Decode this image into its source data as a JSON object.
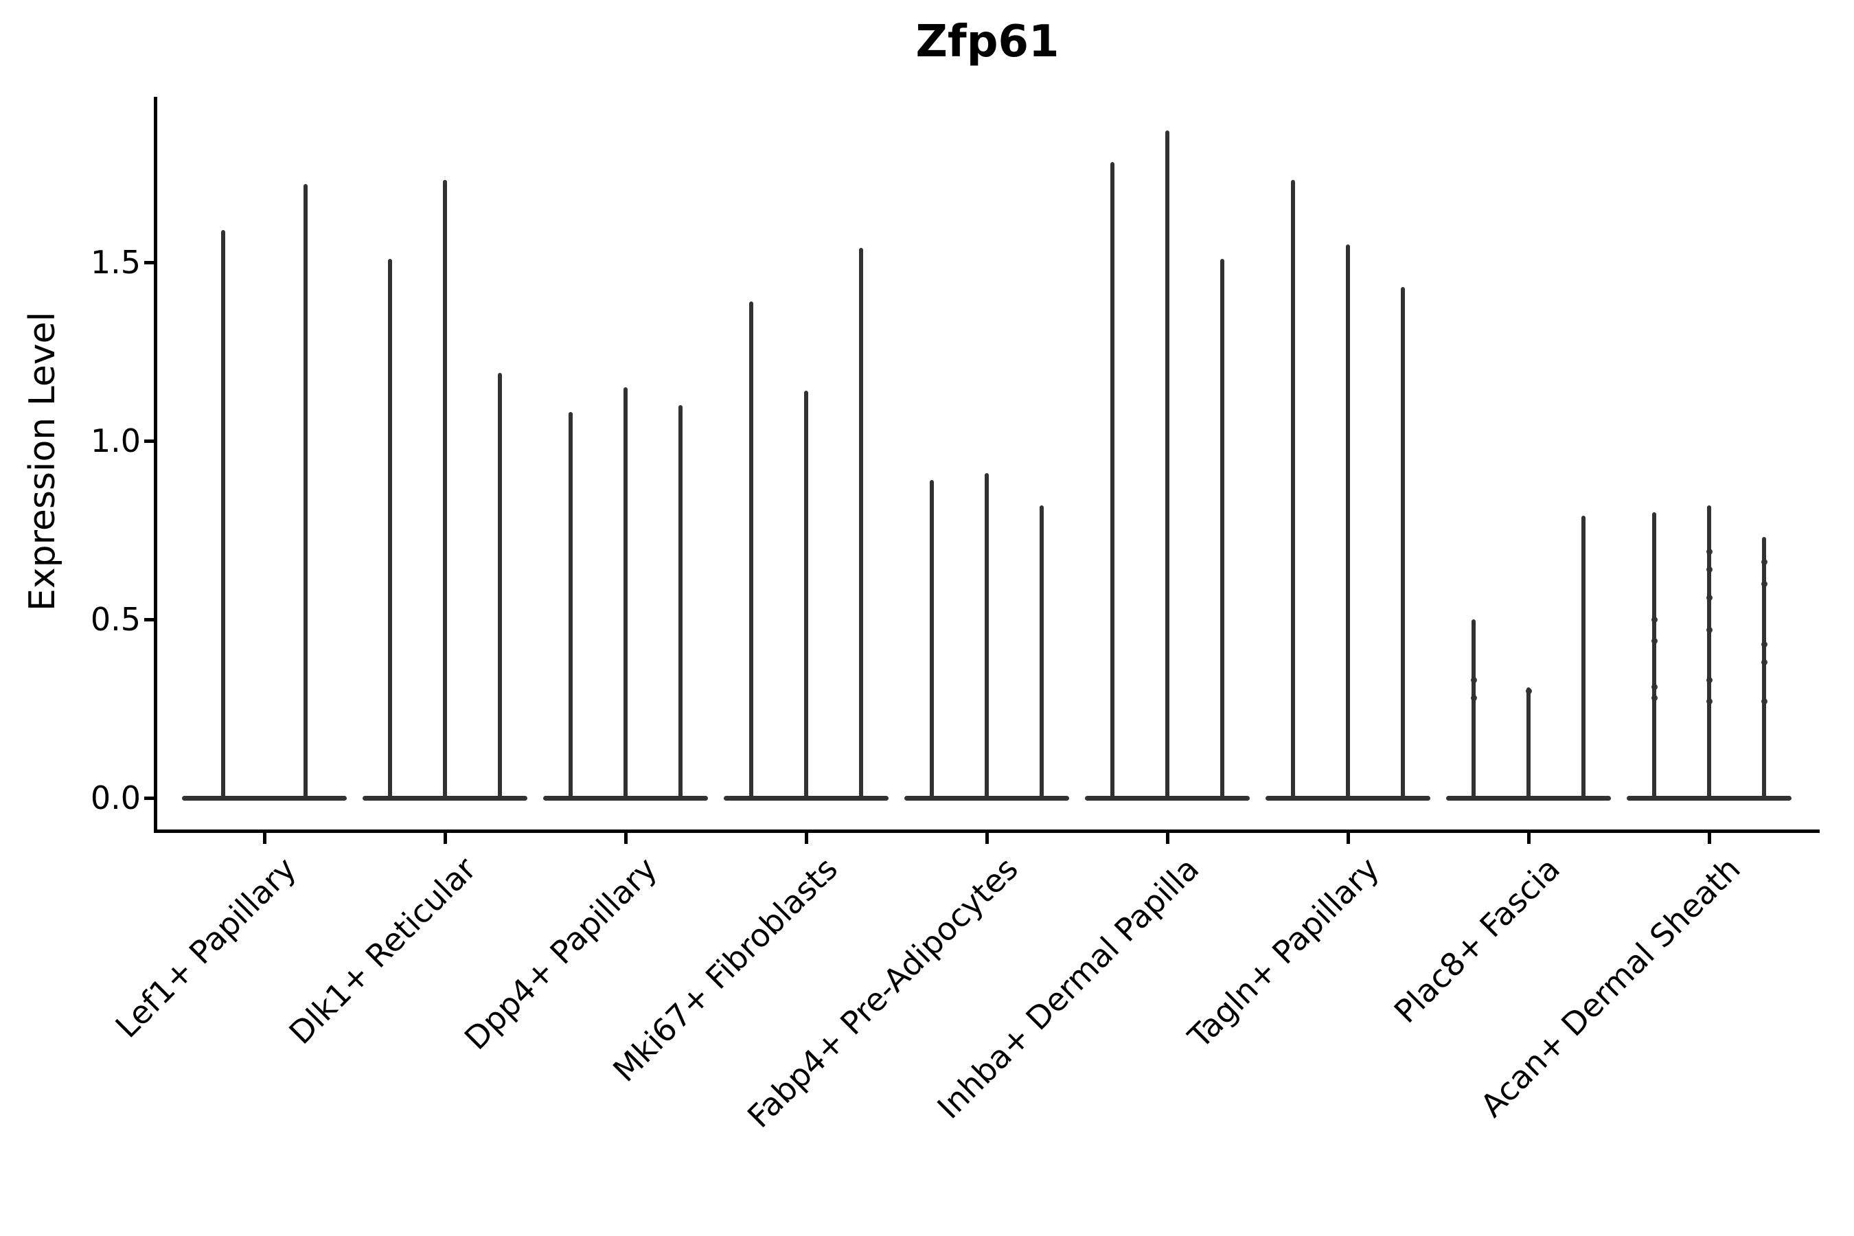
{
  "title": "Zfp61",
  "y_axis": {
    "label": "Expression Level",
    "tick_labels": [
      "0.0",
      "0.5",
      "1.0",
      "1.5"
    ]
  },
  "chart_data": {
    "type": "violin",
    "title": "Zfp61",
    "xlabel": "",
    "ylabel": "Expression Level",
    "ylim": [
      -0.09,
      1.96
    ],
    "yticks": [
      0.0,
      0.5,
      1.0,
      1.5
    ],
    "ytick_labels": [
      "0.0",
      "0.5",
      "1.0",
      "1.5"
    ],
    "grid": false,
    "legend": false,
    "categories": [
      "Lef1+ Papillary",
      "Dlk1+ Reticular",
      "Dpp4+ Papillary",
      "Mki67+ Fibroblasts",
      "Fabp4+ Pre-Adipocytes",
      "Inhba+ Dermal Papilla",
      "Tagln+ Papillary",
      "Plac8+ Fascia",
      "Acan+ Dermal Sheath"
    ],
    "groups": [
      {
        "category": "Lef1+ Papillary",
        "violin_peaks": [
          1.59,
          1.72
        ],
        "jitter_points": [
          [],
          []
        ]
      },
      {
        "category": "Dlk1+ Reticular",
        "violin_peaks": [
          1.51,
          1.73,
          1.19
        ],
        "jitter_points": [
          [],
          [],
          []
        ]
      },
      {
        "category": "Dpp4+ Papillary",
        "violin_peaks": [
          1.08,
          1.15,
          1.1
        ],
        "jitter_points": [
          [],
          [],
          []
        ]
      },
      {
        "category": "Mki67+ Fibroblasts",
        "violin_peaks": [
          1.39,
          1.14,
          1.54
        ],
        "jitter_points": [
          [],
          [],
          []
        ]
      },
      {
        "category": "Fabp4+ Pre-Adipocytes",
        "violin_peaks": [
          0.89,
          0.91,
          0.82
        ],
        "jitter_points": [
          [],
          [],
          []
        ]
      },
      {
        "category": "Inhba+ Dermal Papilla",
        "violin_peaks": [
          1.78,
          1.87,
          1.51
        ],
        "jitter_points": [
          [],
          [],
          []
        ]
      },
      {
        "category": "Tagln+ Papillary",
        "violin_peaks": [
          1.73,
          1.55,
          1.43
        ],
        "jitter_points": [
          [],
          [],
          []
        ]
      },
      {
        "category": "Plac8+ Fascia",
        "violin_peaks": [
          0.5,
          0.31,
          0.79
        ],
        "jitter_points": [
          [
            0.33,
            0.28
          ],
          [
            0.3
          ],
          []
        ]
      },
      {
        "category": "Acan+ Dermal Sheath",
        "violin_peaks": [
          0.8,
          0.82,
          0.73
        ],
        "jitter_points": [
          [
            0.5,
            0.44,
            0.31,
            0.28
          ],
          [
            0.69,
            0.64,
            0.56,
            0.47,
            0.33,
            0.27
          ],
          [
            0.66,
            0.6,
            0.43,
            0.38,
            0.27
          ]
        ]
      }
    ],
    "colors": {
      "violin": "#323232",
      "axis": "#000000",
      "text": "#000000",
      "background": "#ffffff"
    }
  }
}
